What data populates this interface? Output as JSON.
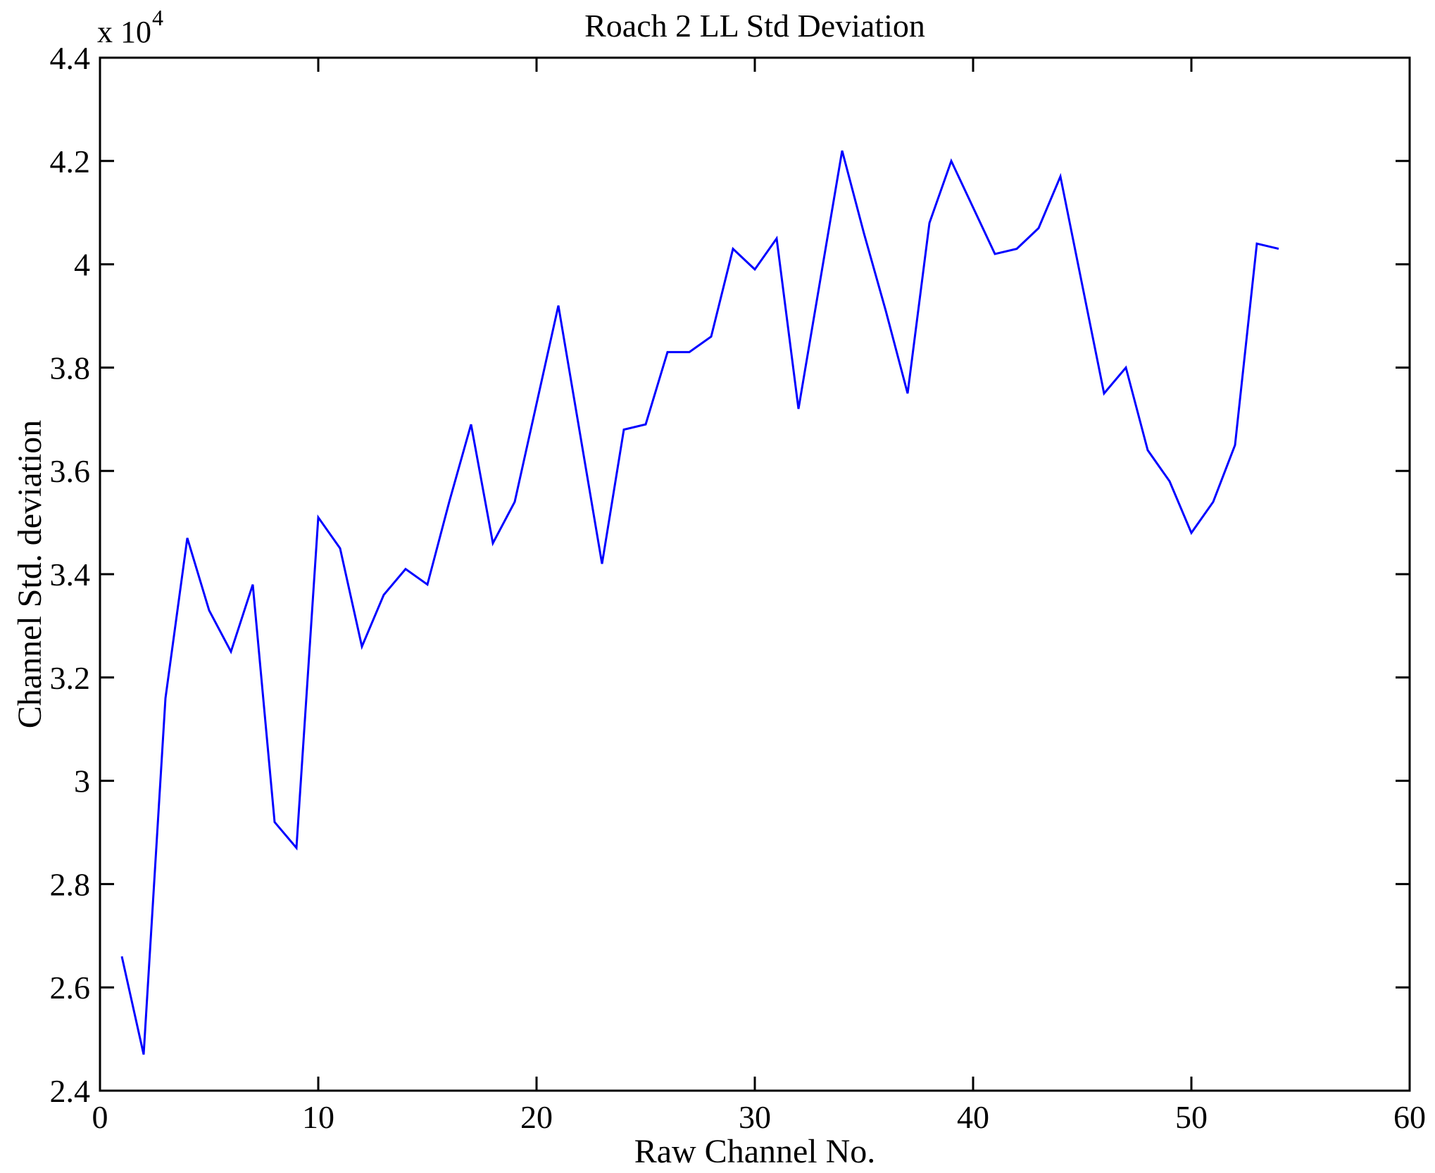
{
  "figure": {
    "background": "#ffffff",
    "title": "Roach 2 LL Std Deviation",
    "xlabel": "Raw Channel No.",
    "ylabel": "Channel Std. deviation",
    "y_scale_label": "x 10",
    "y_scale_exponent": "4"
  },
  "chart_data": {
    "type": "line",
    "title": "Roach 2 LL Std Deviation",
    "xlabel": "Raw Channel No.",
    "ylabel": "Channel Std. deviation",
    "y_unit_multiplier": 10000,
    "grid": false,
    "legend": null,
    "line_color": "#0000ff",
    "axis_color": "#000000",
    "xlim": [
      0,
      60
    ],
    "ylim": [
      2.4,
      4.4
    ],
    "xticks": [
      0,
      10,
      20,
      30,
      40,
      50,
      60
    ],
    "xtick_labels": [
      "0",
      "10",
      "20",
      "30",
      "40",
      "50",
      "60"
    ],
    "yticks": [
      2.4,
      2.6,
      2.8,
      3.0,
      3.2,
      3.4,
      3.6,
      3.8,
      4.0,
      4.2,
      4.4
    ],
    "ytick_labels": [
      "2.4",
      "2.6",
      "2.8",
      "3",
      "3.2",
      "3.4",
      "3.6",
      "3.8",
      "4",
      "4.2",
      "4.4"
    ],
    "x": [
      1,
      2,
      3,
      4,
      5,
      6,
      7,
      8,
      9,
      10,
      11,
      12,
      13,
      14,
      15,
      16,
      17,
      18,
      19,
      20,
      21,
      22,
      23,
      24,
      25,
      26,
      27,
      28,
      29,
      30,
      31,
      32,
      33,
      34,
      35,
      36,
      37,
      38,
      39,
      40,
      41,
      42,
      43,
      44,
      45,
      46,
      47,
      48,
      49,
      50,
      51,
      52,
      53,
      54
    ],
    "values": [
      2.66,
      2.47,
      3.16,
      3.47,
      3.33,
      3.25,
      3.38,
      2.92,
      2.87,
      3.51,
      3.45,
      3.26,
      3.36,
      3.41,
      3.38,
      3.54,
      3.69,
      3.46,
      3.54,
      3.73,
      3.92,
      3.67,
      3.42,
      3.68,
      3.69,
      3.83,
      3.83,
      3.86,
      4.03,
      3.99,
      4.05,
      3.72,
      3.97,
      4.22,
      4.06,
      3.91,
      3.75,
      4.08,
      4.2,
      4.11,
      4.02,
      4.03,
      4.07,
      4.17,
      3.96,
      3.75,
      3.8,
      3.64,
      3.58,
      3.48,
      3.54,
      3.65,
      4.04,
      4.03
    ]
  }
}
